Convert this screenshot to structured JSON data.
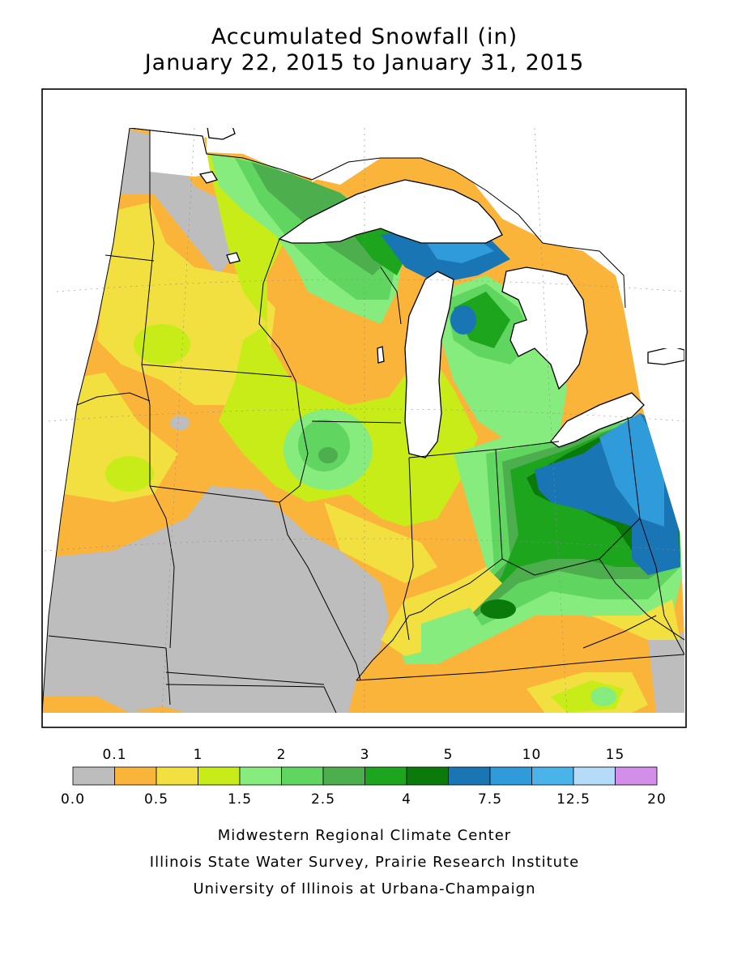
{
  "title": {
    "line1": "Accumulated Snowfall (in)",
    "line2": "January 22, 2015 to January 31, 2015"
  },
  "legend": {
    "colors": [
      "#bdbdbd",
      "#fbb43a",
      "#f2e040",
      "#c8ec18",
      "#86ec7e",
      "#60d660",
      "#4cae4c",
      "#1ea51e",
      "#0a7a0a",
      "#1a75b4",
      "#2f9bda",
      "#4ab4ea",
      "#b4dcf8",
      "#d28ee8"
    ],
    "top_labels": [
      "0.1",
      "1",
      "2",
      "3",
      "5",
      "10",
      "15"
    ],
    "bottom_labels": [
      "0.0",
      "0.5",
      "1.5",
      "2.5",
      "4",
      "7.5",
      "12.5",
      "20"
    ]
  },
  "credits": [
    "Midwestern Regional Climate Center",
    "Illinois State Water Survey, Prairie Research Institute",
    "University of Illinois at Urbana-Champaign"
  ]
}
